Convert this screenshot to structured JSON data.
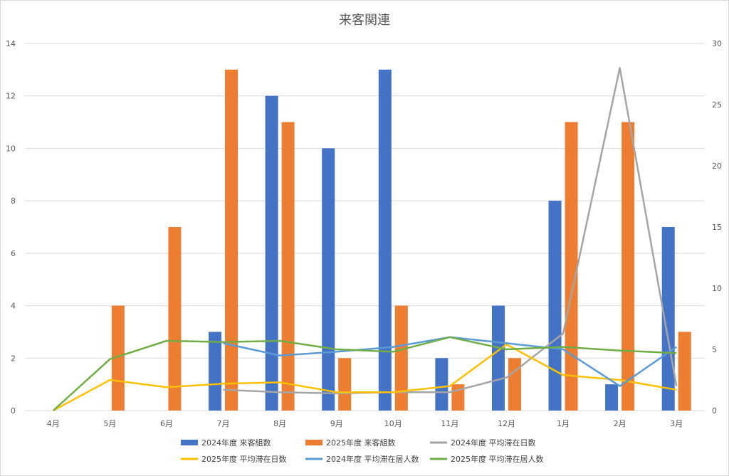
{
  "chart_data": {
    "type": "bar",
    "title": "来客関連",
    "categories": [
      "4月",
      "5月",
      "6月",
      "7月",
      "8月",
      "9月",
      "10月",
      "11月",
      "12月",
      "1月",
      "2月",
      "3月"
    ],
    "y_left": {
      "lim": [
        0,
        14
      ],
      "ticks": [
        0,
        2,
        4,
        6,
        8,
        10,
        12,
        14
      ]
    },
    "y_right": {
      "lim": [
        0,
        30
      ],
      "ticks": [
        0,
        5,
        10,
        15,
        20,
        25,
        30
      ]
    },
    "grid": true,
    "legend_position": "bottom",
    "series": [
      {
        "name": "2024年度 来客組数",
        "kind": "bar",
        "axis": "left",
        "color": "#4472c4",
        "values": [
          null,
          null,
          null,
          3,
          12,
          10,
          13,
          2,
          4,
          8,
          1,
          7
        ]
      },
      {
        "name": "2025年度 来客組数",
        "kind": "bar",
        "axis": "left",
        "color": "#ed7d31",
        "values": [
          null,
          4,
          7,
          13,
          11,
          2,
          4,
          1,
          2,
          11,
          11,
          3
        ]
      },
      {
        "name": "2024年度 平均滞在日数",
        "kind": "line",
        "axis": "right",
        "color": "#a5a5a5",
        "values": [
          null,
          null,
          null,
          1.7,
          1.5,
          1.4,
          1.5,
          1.5,
          2.7,
          6.3,
          28,
          2.0
        ]
      },
      {
        "name": "2025年度 平均滞在日数",
        "kind": "line",
        "axis": "right",
        "color": "#ffc000",
        "values": [
          0,
          2.5,
          1.9,
          2.2,
          2.3,
          1.5,
          1.5,
          2.0,
          5.4,
          2.9,
          2.5,
          1.7
        ]
      },
      {
        "name": "2024年度 平均滞在居人数",
        "kind": "line",
        "axis": "right",
        "color": "#5b9bd5",
        "values": [
          null,
          null,
          null,
          5.5,
          4.5,
          4.8,
          5.2,
          6.0,
          5.5,
          5.0,
          2.0,
          5.2
        ]
      },
      {
        "name": "2025年度 平均滞在居人数",
        "kind": "line",
        "axis": "right",
        "color": "#70ad47",
        "values": [
          0,
          4.2,
          5.7,
          5.6,
          5.7,
          5.0,
          4.8,
          6.0,
          5.0,
          5.2,
          4.9,
          4.7
        ]
      }
    ]
  }
}
